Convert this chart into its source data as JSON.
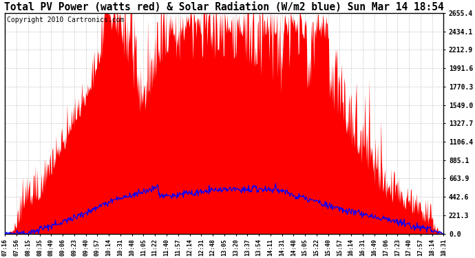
{
  "title": "Total PV Power (watts red) & Solar Radiation (W/m2 blue) Sun Mar 14 18:54",
  "title_fontsize": 10.5,
  "copyright_text": "Copyright 2010 Cartronics.com",
  "copyright_fontsize": 7,
  "y_max": 2655.4,
  "y_min": 0.0,
  "y_ticks": [
    0.0,
    221.3,
    442.6,
    663.9,
    885.1,
    1106.4,
    1327.7,
    1549.0,
    1770.3,
    1991.6,
    2212.9,
    2434.1,
    2655.4
  ],
  "red_color": "#FF0000",
  "blue_color": "#0000FF",
  "background_color": "#FFFFFF",
  "grid_color": "#BBBBBB",
  "x_labels": [
    "07:16",
    "07:56",
    "08:15",
    "08:35",
    "08:49",
    "09:06",
    "09:23",
    "09:40",
    "09:57",
    "10:14",
    "10:31",
    "10:48",
    "11:05",
    "11:22",
    "11:40",
    "11:57",
    "12:14",
    "12:31",
    "12:48",
    "13:05",
    "13:20",
    "13:37",
    "13:54",
    "14:11",
    "14:31",
    "14:48",
    "15:05",
    "15:22",
    "15:40",
    "15:57",
    "16:14",
    "16:31",
    "16:49",
    "17:06",
    "17:23",
    "17:40",
    "17:57",
    "18:14",
    "18:31"
  ]
}
